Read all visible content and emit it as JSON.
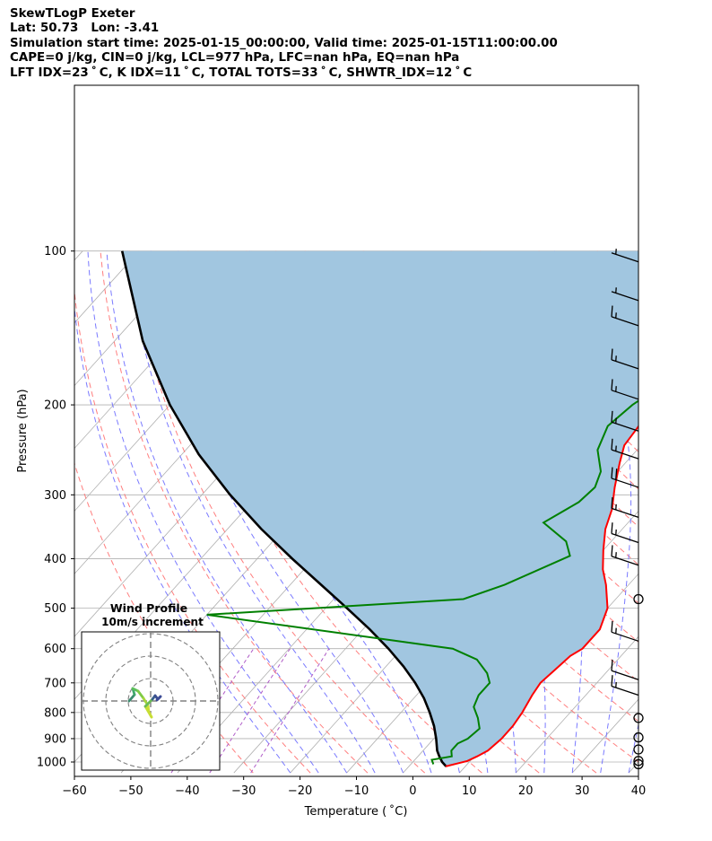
{
  "header": {
    "line1": "SkewTLogP Exeter",
    "line2": "Lat: 50.73   Lon: -3.41",
    "line3": "Simulation start time: 2025-01-15_00:00:00, Valid time: 2025-01-15T11:00:00.00",
    "line4": "CAPE=0 j/kg, CIN=0 j/kg, LCL=977 hPa, LFC=nan hPa, EQ=nan hPa",
    "line5": "LFT IDX=23 ˚ C, K IDX=11 ˚ C, TOTAL TOTS=33 ˚ C, SHWTR_IDX=12 ˚ C"
  },
  "chart_data": {
    "type": "skew-t log-p",
    "xlabel": "Temperature ( ˚C)",
    "ylabel": "Pressure (hPa)",
    "xlim": [
      -60,
      40
    ],
    "ylim": [
      1050,
      100
    ],
    "x_ticks": [
      "−60",
      "−50",
      "−40",
      "−30",
      "−20",
      "−10",
      "0",
      "10",
      "20",
      "30",
      "40"
    ],
    "y_ticks": [
      "100",
      "200",
      "300",
      "400",
      "500",
      "600",
      "700",
      "800",
      "900",
      "1000"
    ],
    "grid": true,
    "colors": {
      "temperature": "#ff0000",
      "dewpoint": "#008000",
      "parcel": "#000000",
      "cape_shading": "#a1c6e0",
      "dry_adiabats": "#ff7070",
      "moist_adiabats": "#6b6bff",
      "mixing_ratio": "#b05cc8",
      "isotherms": "#b0b0b0",
      "wind_barbs": "#000000"
    },
    "series": [
      {
        "key": "temperature",
        "points": [
          [
            6.5,
            1020
          ],
          [
            9.5,
            995
          ],
          [
            10.5,
            975
          ],
          [
            11.5,
            950
          ],
          [
            12,
            900
          ],
          [
            12,
            850
          ],
          [
            11.5,
            800
          ],
          [
            10.5,
            740
          ],
          [
            10,
            700
          ],
          [
            10.5,
            660
          ],
          [
            11,
            620
          ],
          [
            12,
            600
          ],
          [
            12,
            550
          ],
          [
            10,
            500
          ],
          [
            6,
            450
          ],
          [
            3,
            420
          ],
          [
            0,
            385
          ],
          [
            -3,
            350
          ],
          [
            -5,
            320
          ],
          [
            -8,
            290
          ],
          [
            -11,
            260
          ],
          [
            -13,
            240
          ],
          [
            -13.5,
            220
          ],
          [
            -14,
            200
          ],
          [
            -13.5,
            185
          ],
          [
            -12.5,
            170
          ],
          [
            -10,
            158
          ],
          [
            -7,
            148
          ],
          [
            -4,
            140
          ],
          [
            -2,
            130
          ],
          [
            0,
            120
          ],
          [
            2,
            112
          ],
          [
            3,
            106
          ],
          [
            4,
            100
          ]
        ]
      },
      {
        "key": "dewpoint",
        "points": [
          [
            4,
            1010
          ],
          [
            3,
            990
          ],
          [
            6,
            975
          ],
          [
            5,
            950
          ],
          [
            5,
            920
          ],
          [
            6,
            900
          ],
          [
            6.5,
            860
          ],
          [
            4.5,
            820
          ],
          [
            2,
            780
          ],
          [
            1,
            740
          ],
          [
            1,
            700
          ],
          [
            -1,
            670
          ],
          [
            -5,
            630
          ],
          [
            -11,
            600
          ],
          [
            -60,
            515
          ],
          [
            -17,
            480
          ],
          [
            -12,
            450
          ],
          [
            -5,
            395
          ],
          [
            -8,
            370
          ],
          [
            -15,
            340
          ],
          [
            -12,
            310
          ],
          [
            -11.5,
            290
          ],
          [
            -13,
            270
          ],
          [
            -17,
            245
          ],
          [
            -19,
            220
          ],
          [
            -18,
            200
          ],
          [
            -15,
            175
          ],
          [
            -12,
            155
          ],
          [
            -11,
            145
          ],
          [
            -13,
            130
          ],
          [
            -10,
            120
          ],
          [
            -6,
            110
          ],
          [
            -3,
            100
          ]
        ]
      },
      {
        "key": "parcel",
        "points": [
          [
            6.6,
            1020
          ],
          [
            5.2,
            1000
          ],
          [
            3.9,
            977
          ],
          [
            2.5,
            950
          ],
          [
            0.4,
            900
          ],
          [
            -2,
            850
          ],
          [
            -4.9,
            800
          ],
          [
            -8.2,
            750
          ],
          [
            -12.2,
            700
          ],
          [
            -16.9,
            650
          ],
          [
            -22.4,
            600
          ],
          [
            -28.8,
            550
          ],
          [
            -36.2,
            500
          ],
          [
            -44.5,
            450
          ],
          [
            -53.8,
            400
          ],
          [
            -64,
            350
          ],
          [
            -75,
            300
          ],
          [
            -87,
            250
          ],
          [
            -100,
            200
          ],
          [
            -115,
            150
          ],
          [
            -133,
            100
          ]
        ]
      }
    ],
    "wind_barbs": [
      {
        "pressure": 1010,
        "speed_kt": 0
      },
      {
        "pressure": 995,
        "speed_kt": 0
      },
      {
        "pressure": 945,
        "speed_kt": 0
      },
      {
        "pressure": 895,
        "speed_kt": 0
      },
      {
        "pressure": 820,
        "speed_kt": 0
      },
      {
        "pressure": 740,
        "speed_kt": 15
      },
      {
        "pressure": 690,
        "speed_kt": 10
      },
      {
        "pressure": 580,
        "speed_kt": 15
      },
      {
        "pressure": 480,
        "speed_kt": 0
      },
      {
        "pressure": 412,
        "speed_kt": 15
      },
      {
        "pressure": 372,
        "speed_kt": 15
      },
      {
        "pressure": 332,
        "speed_kt": 15
      },
      {
        "pressure": 290,
        "speed_kt": 20
      },
      {
        "pressure": 255,
        "speed_kt": 15
      },
      {
        "pressure": 225,
        "speed_kt": 15
      },
      {
        "pressure": 195,
        "speed_kt": 15
      },
      {
        "pressure": 170,
        "speed_kt": 15
      },
      {
        "pressure": 140,
        "speed_kt": 15
      },
      {
        "pressure": 125,
        "speed_kt": 5
      },
      {
        "pressure": 105,
        "speed_kt": 5
      }
    ],
    "hodograph": {
      "title": "Wind Profile",
      "subtitle": "10m/s increment"
    }
  }
}
